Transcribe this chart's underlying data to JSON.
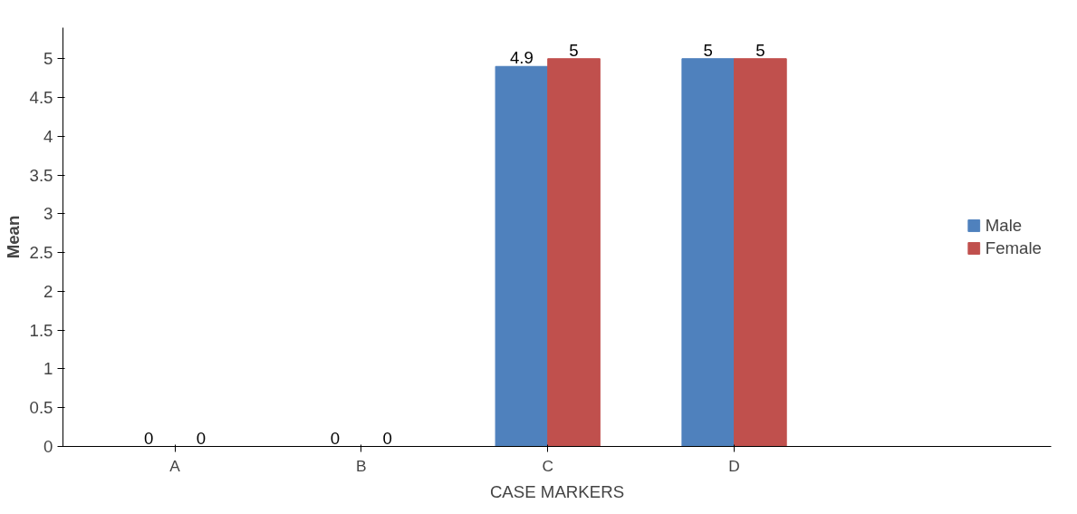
{
  "chart_data": {
    "type": "bar",
    "xlabel": "CASE MARKERS",
    "ylabel": "Mean",
    "categories": [
      "A",
      "B",
      "C",
      "D"
    ],
    "series": [
      {
        "name": "Male",
        "color": "#4f81bd",
        "values": [
          0,
          0,
          4.9,
          5
        ]
      },
      {
        "name": "Female",
        "color": "#c0504d",
        "values": [
          0,
          0,
          5,
          5
        ]
      }
    ],
    "ylim": [
      0,
      5.4
    ],
    "yticks": [
      0,
      0.5,
      1,
      1.5,
      2,
      2.5,
      3,
      3.5,
      4,
      4.5,
      5
    ],
    "grid": false,
    "legend": "right",
    "data_labels": true
  }
}
